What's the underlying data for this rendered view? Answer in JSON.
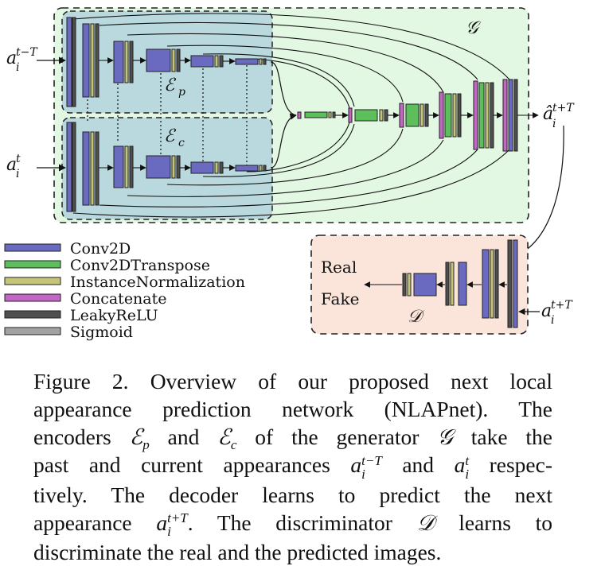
{
  "labels": {
    "generator": "𝒢",
    "encoder_past": "ℰ",
    "encoder_past_sub": "p",
    "encoder_current": "ℰ",
    "encoder_current_sub": "c",
    "discriminator": "𝒟",
    "input_past_base": "a",
    "input_past_sub": "i",
    "input_past_sup": "t−T",
    "input_current_base": "a",
    "input_current_sub": "i",
    "input_current_sup": "t",
    "output_base": "â",
    "output_sub": "i",
    "output_sup": "t+T",
    "disc_input_base": "a",
    "disc_input_sub": "i",
    "disc_input_sup": "t+T",
    "real": "Real",
    "fake": "Fake"
  },
  "legend": [
    {
      "label": "Conv2D",
      "color": "#6a6ac0"
    },
    {
      "label": "Conv2DTranspose",
      "color": "#5cbf5c"
    },
    {
      "label": "InstanceNormalization",
      "color": "#c5c57a"
    },
    {
      "label": "Concatenate",
      "color": "#c466c4"
    },
    {
      "label": "LeakyReLU",
      "color": "#4f4f4f"
    },
    {
      "label": "Sigmoid",
      "color": "#a3a3a3"
    }
  ],
  "colors": {
    "generator_bg": "#e3f8e3",
    "encoder_bg": "#b9d9df",
    "discriminator_bg": "#fbe5da"
  },
  "caption": {
    "l1": "Figure 2. Overview of our proposed next local",
    "l2": "appearance prediction network (NLAPnet). The",
    "l3_a": "encoders ",
    "l3_ep": "ℰ",
    "l3_ep_sub": "p",
    "l3_b": " and ",
    "l3_ec": "ℰ",
    "l3_ec_sub": "c",
    "l3_c": " of the generator ",
    "l3_g": "𝒢",
    "l3_d": " take the",
    "l4_a": "past and current appearances ",
    "l4_a1": "a",
    "l4_a1_sup": "t−T",
    "l4_a1_sub": "i",
    "l4_b": " and ",
    "l4_a2": "a",
    "l4_a2_sup": "t",
    "l4_a2_sub": "i",
    "l4_c": " respec-",
    "l5": "tively.  The decoder learns to predict the next",
    "l6_a": "appearance ",
    "l6_a1": "a",
    "l6_a1_sup": "t+T",
    "l6_a1_sub": "i",
    "l6_b": ". The discriminator ",
    "l6_d": "𝒟",
    "l6_c": " learns to",
    "l7": "discriminate the real and the predicted images."
  }
}
